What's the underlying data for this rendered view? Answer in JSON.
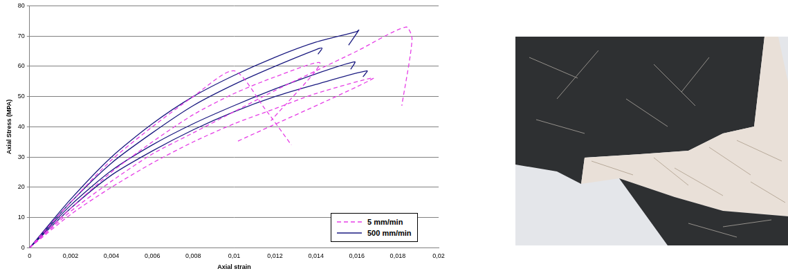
{
  "chart_data": {
    "type": "scatter",
    "x_label": "Axial strain",
    "y_label": "Axial Stress (MPA)",
    "xlim": [
      0,
      0.02
    ],
    "xticks": [
      0,
      {
        "value": 0.002,
        "label": "0,002"
      },
      {
        "value": 0.004,
        "label": "0,004"
      },
      {
        "value": 0.006,
        "label": "0,006"
      },
      {
        "value": 0.008,
        "label": "0,008"
      },
      {
        "value": 0.01,
        "label": "0,01"
      },
      {
        "value": 0.012,
        "label": "0,012"
      },
      {
        "value": 0.014,
        "label": "0,014"
      },
      {
        "value": 0.016,
        "label": "0,016"
      },
      {
        "value": 0.018,
        "label": "0,018"
      },
      {
        "value": 0.02,
        "label": "0,02"
      }
    ],
    "ylim": [
      0,
      80
    ],
    "yticks": [
      0,
      10,
      20,
      30,
      40,
      50,
      60,
      70,
      80
    ],
    "grid": "y",
    "legend": "lower right",
    "series": [
      {
        "name": "5 mm/min",
        "color": "#e63ee6",
        "line_style": "dashed",
        "curves": [
          {
            "x": [
              0,
              0.002,
              0.004,
              0.006,
              0.008,
              0.01,
              0.0115,
              0.0128
            ],
            "values": [
              0,
              15,
              29,
              40,
              50,
              58.5,
              46,
              34
            ]
          },
          {
            "x": [
              0,
              0.002,
              0.004,
              0.006,
              0.008,
              0.01,
              0.012,
              0.014,
              0.016,
              0.0184,
              0.0187,
              0.0182
            ],
            "values": [
              0,
              12,
              22,
              31,
              38,
              45,
              52,
              58.5,
              65,
              73,
              69,
              47
            ]
          },
          {
            "x": [
              0,
              0.002,
              0.004,
              0.006,
              0.008,
              0.01,
              0.012,
              0.014,
              0.0168,
              0.0101
            ],
            "values": [
              0,
              11,
              20,
              28,
              35,
              41,
              46,
              51,
              56,
              35
            ]
          },
          {
            "x": [
              0,
              0.002,
              0.004,
              0.006,
              0.008,
              0.01,
              0.012,
              0.0142,
              0.0118
            ],
            "values": [
              0,
              13,
              25,
              35,
              44,
              51,
              56.5,
              61,
              42
            ]
          }
        ]
      },
      {
        "name": "500 mm/min",
        "color": "#1a1a80",
        "line_style": "solid",
        "curves": [
          {
            "x": [
              0,
              0.002,
              0.004,
              0.006,
              0.008,
              0.01,
              0.012,
              0.014,
              0.016,
              0.0161,
              0.0156
            ],
            "values": [
              0,
              16,
              30,
              41,
              50,
              57,
              63,
              68,
              71.5,
              72,
              67
            ]
          },
          {
            "x": [
              0,
              0.002,
              0.004,
              0.006,
              0.008,
              0.01,
              0.012,
              0.014,
              0.0143,
              0.0141
            ],
            "values": [
              0,
              15,
              28,
              38,
              47,
              54,
              60,
              65.5,
              66,
              64
            ]
          },
          {
            "x": [
              0,
              0.002,
              0.004,
              0.006,
              0.008,
              0.01,
              0.012,
              0.014,
              0.0159,
              0.0157
            ],
            "values": [
              0,
              14,
              25.5,
              34,
              41,
              47,
              52.5,
              57.5,
              61.5,
              59
            ]
          },
          {
            "x": [
              0,
              0.002,
              0.004,
              0.006,
              0.008,
              0.01,
              0.012,
              0.014,
              0.0165,
              0.0163
            ],
            "values": [
              0,
              13,
              24,
              32,
              39,
              45,
              50,
              54,
              58.5,
              56.5
            ]
          }
        ]
      }
    ]
  }
}
